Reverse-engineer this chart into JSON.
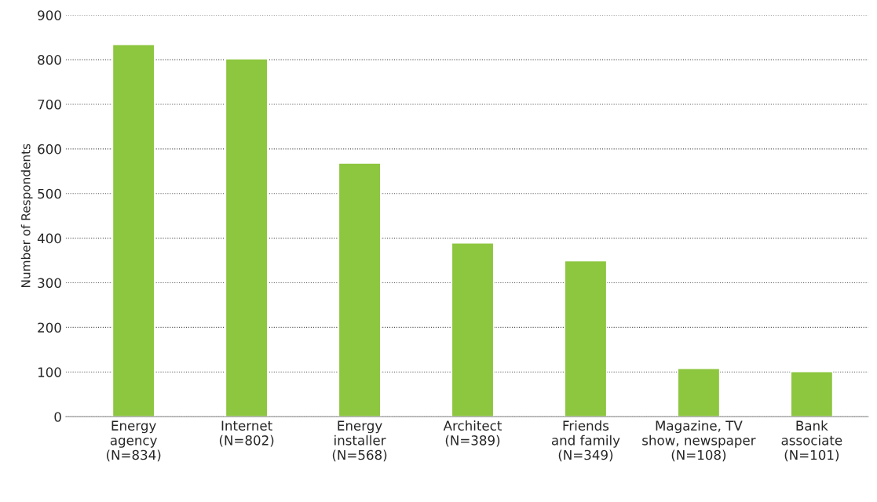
{
  "chart_data": {
    "type": "bar",
    "categories": [
      "Energy\nagency\n(N=834)",
      "Internet\n(N=802)",
      "Energy\ninstaller\n(N=568)",
      "Architect\n(N=389)",
      "Friends\nand family\n(N=349)",
      "Magazine, TV\nshow, newspaper\n(N=108)",
      "Bank\nassociate\n(N=101)"
    ],
    "values": [
      834,
      802,
      568,
      389,
      349,
      108,
      101
    ],
    "color": "#8dc63f",
    "ylabel": "Number of Respondents",
    "ylim": [
      0,
      900
    ],
    "yticks": [
      0,
      100,
      200,
      300,
      400,
      500,
      600,
      700,
      800,
      900
    ],
    "grid": "y"
  }
}
